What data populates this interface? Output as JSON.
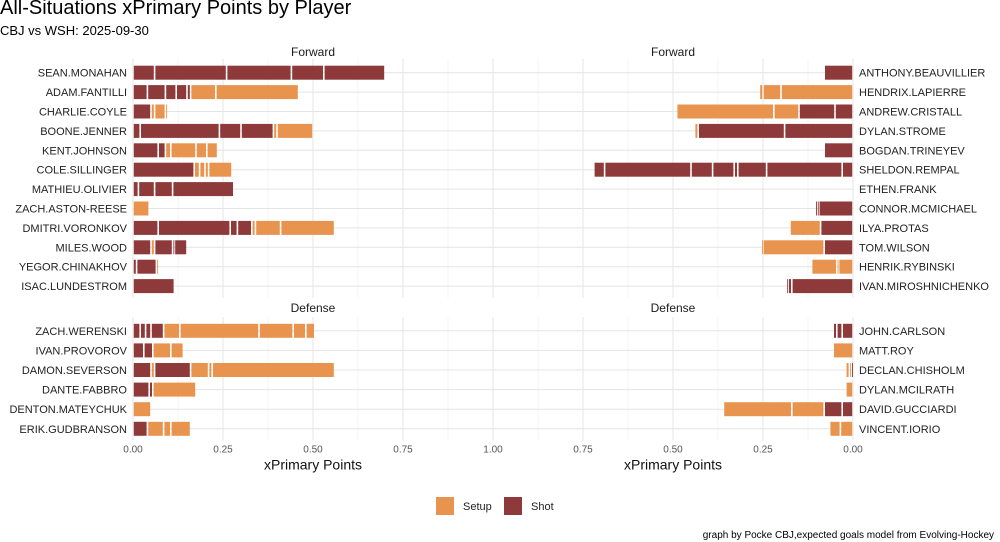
{
  "title": "All-Situations xPrimary Points by Player",
  "subtitle": "CBJ vs WSH: 2025-09-30",
  "caption": "graph by Pocke CBJ,expected goals model from Evolving-Hockey",
  "colors": {
    "setup": "#E8944E",
    "shot": "#8E3A3A",
    "grid_major": "#e4e4e4",
    "grid_minor": "#f1f1f1"
  },
  "chart_data": {
    "type": "bar",
    "orientation": "horizontal",
    "stacked_segments": true,
    "xlabel": "xPrimary Points",
    "legend": {
      "position": "bottom",
      "entries": [
        {
          "key": "setup",
          "label": "Setup"
        },
        {
          "key": "shot",
          "label": "Shot"
        }
      ]
    },
    "panels": [
      {
        "id": "cbj-forward",
        "strip": "Forward",
        "team": "CBJ",
        "direction": "right",
        "xlim": [
          0,
          1
        ],
        "ticks": [
          "0.00",
          "0.25",
          "0.50",
          "0.75",
          "1.00"
        ],
        "show_axis": false,
        "players": [
          {
            "name": "SEAN.MONAHAN",
            "segments": [
              [
                "shot",
                0.06
              ],
              [
                "shot",
                0.2
              ],
              [
                "shot",
                0.18
              ],
              [
                "shot",
                0.09
              ],
              [
                "shot",
                0.17
              ]
            ]
          },
          {
            "name": "ADAM.FANTILLI",
            "segments": [
              [
                "shot",
                0.04
              ],
              [
                "shot",
                0.05
              ],
              [
                "shot",
                0.03
              ],
              [
                "shot",
                0.03
              ],
              [
                "shot",
                0.01
              ],
              [
                "setup",
                0.07
              ],
              [
                "setup",
                0.23
              ]
            ]
          },
          {
            "name": "CHARLIE.COYLE",
            "segments": [
              [
                "shot",
                0.05
              ],
              [
                "setup",
                0.01
              ],
              [
                "setup",
                0.03
              ],
              [
                "setup",
                0.005
              ]
            ]
          },
          {
            "name": "BOONE.JENNER",
            "segments": [
              [
                "shot",
                0.02
              ],
              [
                "shot",
                0.22
              ],
              [
                "shot",
                0.06
              ],
              [
                "shot",
                0.09
              ],
              [
                "setup",
                0.01
              ],
              [
                "setup",
                0.1
              ]
            ]
          },
          {
            "name": "KENT.JOHNSON",
            "segments": [
              [
                "shot",
                0.07
              ],
              [
                "shot",
                0.02
              ],
              [
                "setup",
                0.015
              ],
              [
                "setup",
                0.07
              ],
              [
                "setup",
                0.03
              ],
              [
                "setup",
                0.03
              ]
            ]
          },
          {
            "name": "COLE.SILLINGER",
            "segments": [
              [
                "shot",
                0.17
              ],
              [
                "setup",
                0.015
              ],
              [
                "setup",
                0.015
              ],
              [
                "setup",
                0.01
              ],
              [
                "setup",
                0.065
              ]
            ]
          },
          {
            "name": "MATHIEU.OLIVIER",
            "segments": [
              [
                "shot",
                0.015
              ],
              [
                "shot",
                0.045
              ],
              [
                "shot",
                0.05
              ],
              [
                "shot",
                0.17
              ]
            ]
          },
          {
            "name": "ZACH.ASTON-REESE",
            "segments": [
              [
                "setup",
                0.045
              ]
            ]
          },
          {
            "name": "DMITRI.VORONKOV",
            "segments": [
              [
                "shot",
                0.07
              ],
              [
                "shot",
                0.2
              ],
              [
                "shot",
                0.02
              ],
              [
                "shot",
                0.04
              ],
              [
                "setup",
                0.01
              ],
              [
                "setup",
                0.07
              ],
              [
                "setup",
                0.15
              ]
            ]
          },
          {
            "name": "MILES.WOOD",
            "segments": [
              [
                "shot",
                0.05
              ],
              [
                "setup",
                0.01
              ],
              [
                "shot",
                0.05
              ],
              [
                "shot",
                0.005
              ],
              [
                "shot",
                0.035
              ]
            ]
          },
          {
            "name": "YEGOR.CHINAKHOV",
            "segments": [
              [
                "shot",
                0.01
              ],
              [
                "shot",
                0.055
              ],
              [
                "setup",
                0.003
              ]
            ]
          },
          {
            "name": "ISAC.LUNDESTROM",
            "segments": [
              [
                "shot",
                0.115
              ]
            ]
          }
        ]
      },
      {
        "id": "wsh-forward",
        "strip": "Forward",
        "team": "WSH",
        "direction": "left",
        "xlim": [
          0,
          1
        ],
        "ticks": [
          "0.75",
          "0.50",
          "0.25",
          "0.00"
        ],
        "show_axis": false,
        "players": [
          {
            "name": "ANTHONY.BEAUVILLIER",
            "segments": [
              [
                "shot",
                0.08
              ]
            ]
          },
          {
            "name": "HENDRIX.LAPIERRE",
            "segments": [
              [
                "setup",
                0.2
              ],
              [
                "setup",
                0.05
              ],
              [
                "setup",
                0.01
              ]
            ]
          },
          {
            "name": "ANDREW.CRISTALL",
            "segments": [
              [
                "shot",
                0.05
              ],
              [
                "shot",
                0.1
              ],
              [
                "setup",
                0.07
              ],
              [
                "setup",
                0.27
              ]
            ]
          },
          {
            "name": "DYLAN.STROME",
            "segments": [
              [
                "shot",
                0.19
              ],
              [
                "shot",
                0.24
              ],
              [
                "setup",
                0.01
              ]
            ]
          },
          {
            "name": "BOGDAN.TRINEYEV",
            "segments": [
              [
                "shot",
                0.08
              ]
            ]
          },
          {
            "name": "SHELDON.REMPAL",
            "segments": [
              [
                "shot",
                0.03
              ],
              [
                "shot",
                0.21
              ],
              [
                "shot",
                0.08
              ],
              [
                "shot",
                0.01
              ],
              [
                "shot",
                0.06
              ],
              [
                "shot",
                0.06
              ],
              [
                "shot",
                0.24
              ],
              [
                "shot",
                0.03
              ]
            ]
          },
          {
            "name": "ETHEN.FRANK",
            "segments": []
          },
          {
            "name": "CONNOR.MCMICHAEL",
            "segments": [
              [
                "shot",
                0.095
              ],
              [
                "shot",
                0.005
              ],
              [
                "shot",
                0.005
              ]
            ]
          },
          {
            "name": "ILYA.PROTAS",
            "segments": [
              [
                "shot",
                0.09
              ],
              [
                "setup",
                0.085
              ]
            ]
          },
          {
            "name": "TOM.WILSON",
            "segments": [
              [
                "shot",
                0.08
              ],
              [
                "setup",
                0.17
              ],
              [
                "setup",
                0.005
              ]
            ]
          },
          {
            "name": "HENRIK.RYBINSKI",
            "segments": [
              [
                "setup",
                0.04
              ],
              [
                "setup",
                0.005
              ],
              [
                "setup",
                0.07
              ]
            ]
          },
          {
            "name": "IVAN.MIROSHNICHENKO",
            "segments": [
              [
                "shot",
                0.17
              ],
              [
                "shot",
                0.01
              ],
              [
                "shot",
                0.005
              ]
            ]
          }
        ]
      },
      {
        "id": "cbj-defense",
        "strip": "Defense",
        "team": "CBJ",
        "direction": "right",
        "xlim": [
          0,
          1
        ],
        "ticks": [
          "0.00",
          "0.25",
          "0.50",
          "0.75",
          "1.00"
        ],
        "show_axis": true,
        "players": [
          {
            "name": "ZACH.WERENSKI",
            "segments": [
              [
                "shot",
                0.02
              ],
              [
                "shot",
                0.015
              ],
              [
                "shot",
                0.015
              ],
              [
                "shot",
                0.035
              ],
              [
                "setup",
                0.045
              ],
              [
                "setup",
                0.22
              ],
              [
                "setup",
                0.095
              ],
              [
                "setup",
                0.035
              ],
              [
                "setup",
                0.025
              ]
            ]
          },
          {
            "name": "IVAN.PROVOROV",
            "segments": [
              [
                "shot",
                0.03
              ],
              [
                "shot",
                0.025
              ],
              [
                "setup",
                0.05
              ],
              [
                "setup",
                0.035
              ]
            ]
          },
          {
            "name": "DAMON.SEVERSON",
            "segments": [
              [
                "shot",
                0.05
              ],
              [
                "setup",
                0.01
              ],
              [
                "shot",
                0.1
              ],
              [
                "setup",
                0.05
              ],
              [
                "setup",
                0.01
              ],
              [
                "setup",
                0.34
              ]
            ]
          },
          {
            "name": "DANTE.FABBRO",
            "segments": [
              [
                "shot",
                0.045
              ],
              [
                "shot",
                0.01
              ],
              [
                "setup",
                0.12
              ]
            ]
          },
          {
            "name": "DENTON.MATEYCHUK",
            "segments": [
              [
                "setup",
                0.05
              ]
            ]
          },
          {
            "name": "ERIK.GUDBRANSON",
            "segments": [
              [
                "shot",
                0.04
              ],
              [
                "setup",
                0.045
              ],
              [
                "setup",
                0.02
              ],
              [
                "setup",
                0.055
              ]
            ]
          }
        ]
      },
      {
        "id": "wsh-defense",
        "strip": "Defense",
        "team": "WSH",
        "direction": "left",
        "xlim": [
          0,
          1
        ],
        "ticks": [
          "0.75",
          "0.50",
          "0.25",
          "0.00"
        ],
        "show_axis": true,
        "players": [
          {
            "name": "JOHN.CARLSON",
            "segments": [
              [
                "shot",
                0.03
              ],
              [
                "shot",
                0.015
              ],
              [
                "shot",
                0.01
              ]
            ]
          },
          {
            "name": "MATT.ROY",
            "segments": [
              [
                "setup",
                0.055
              ]
            ]
          },
          {
            "name": "DECLAN.CHISHOLM",
            "segments": [
              [
                "shot",
                0.005
              ],
              [
                "setup",
                0.005
              ],
              [
                "setup",
                0.01
              ]
            ]
          },
          {
            "name": "DYLAN.MCILRATH",
            "segments": [
              [
                "setup",
                0.02
              ]
            ]
          },
          {
            "name": "DAVID.GUCCIARDI",
            "segments": [
              [
                "shot",
                0.03
              ],
              [
                "shot",
                0.05
              ],
              [
                "setup",
                0.09
              ],
              [
                "setup",
                0.19
              ]
            ]
          },
          {
            "name": "VINCENT.IORIO",
            "segments": [
              [
                "setup",
                0.035
              ],
              [
                "setup",
                0.03
              ]
            ]
          }
        ]
      }
    ]
  }
}
